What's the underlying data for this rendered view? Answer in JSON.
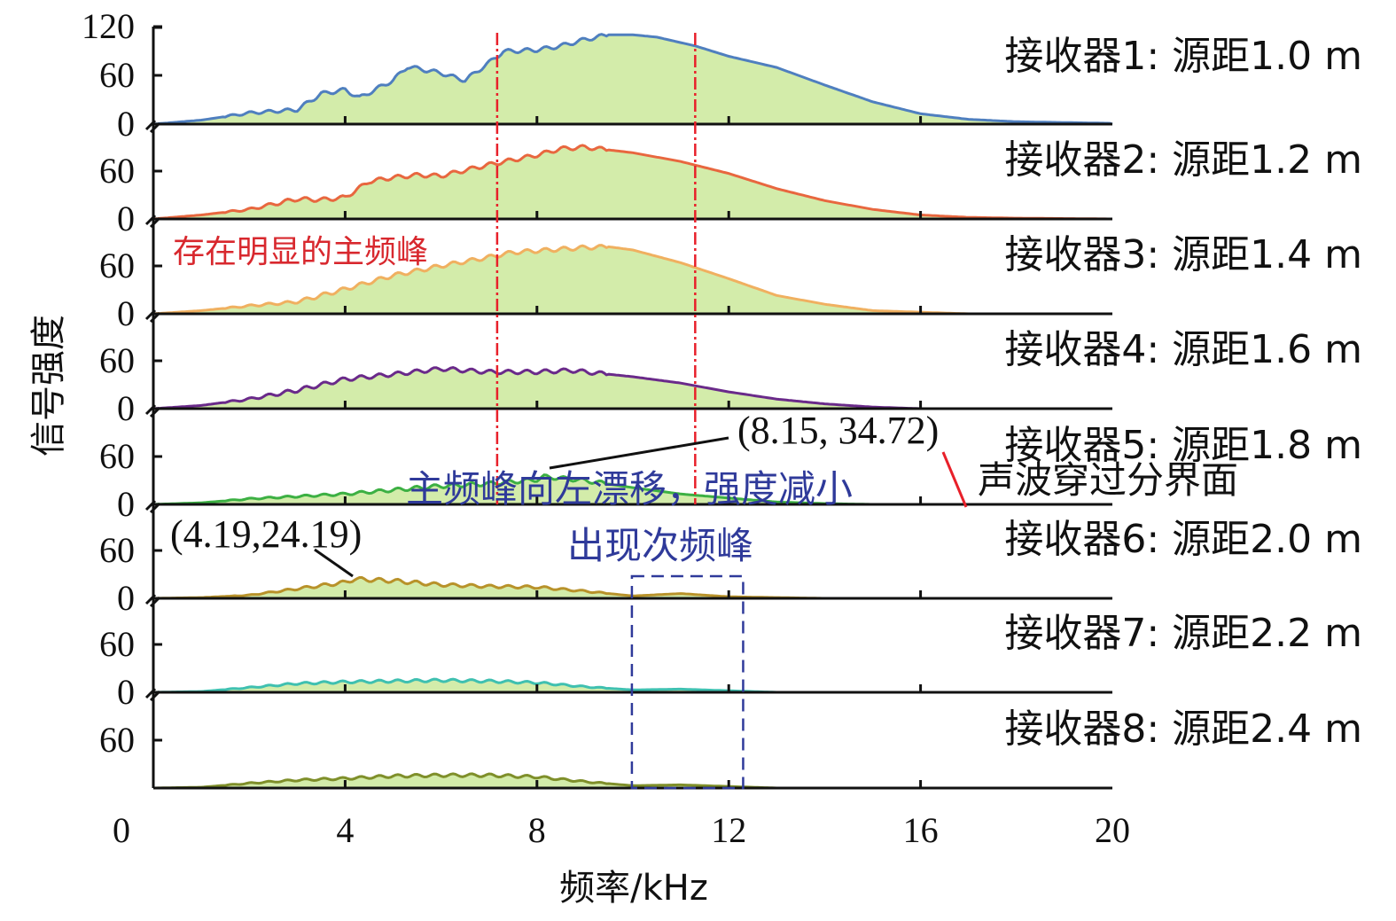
{
  "chart_data": {
    "type": "area",
    "xlabel": "频率/kHz",
    "ylabel": "信号强度",
    "xlim": [
      0,
      20
    ],
    "xticks": [
      "0",
      "4",
      "8",
      "12",
      "16",
      "20"
    ],
    "ylim": [
      0,
      120
    ],
    "first_panel_yticks": [
      "120",
      "60",
      "0"
    ],
    "panel_yticks": [
      "60",
      "0"
    ],
    "fill_color": "#d3ecaa",
    "series": [
      {
        "name": "接收器1: 源距1.0 m",
        "color": "#4f7fbf",
        "x": [
          0,
          1,
          2,
          3,
          3.5,
          4,
          4.3,
          5,
          5.3,
          6,
          6.2,
          6.5,
          7,
          7.3,
          8,
          8.5,
          9,
          9.5,
          10,
          10.5,
          11.3,
          12,
          13,
          14,
          15,
          16,
          17,
          18,
          20
        ],
        "y": [
          0,
          5,
          14,
          18,
          38,
          43,
          33,
          55,
          72,
          64,
          60,
          55,
          77,
          91,
          93,
          98,
          106,
          112,
          112,
          109,
          98,
          85,
          71,
          49,
          28,
          13,
          6,
          3,
          1
        ]
      },
      {
        "name": "接收器2: 源距1.2 m",
        "color": "#e8673f",
        "x": [
          0,
          1,
          2,
          3,
          3.5,
          4,
          4.5,
          5,
          5.5,
          6,
          7,
          7.5,
          8,
          8.5,
          9,
          10,
          11,
          12,
          13,
          14,
          15,
          16,
          17,
          18,
          20
        ],
        "y": [
          0,
          5,
          12,
          25,
          24,
          27,
          47,
          52,
          55,
          54,
          68,
          74,
          80,
          88,
          90,
          83,
          72,
          57,
          38,
          23,
          12,
          5,
          2,
          1,
          0
        ]
      },
      {
        "name": "接收器3: 源距1.4 m",
        "color": "#f0b060",
        "x": [
          0,
          1,
          2,
          3,
          4,
          5,
          6,
          7,
          7.5,
          8,
          9,
          9.5,
          10,
          11,
          12,
          13,
          14,
          15,
          16,
          17,
          20
        ],
        "y": [
          0,
          4,
          10,
          15,
          31,
          48,
          60,
          71,
          77,
          79,
          83,
          84,
          80,
          64,
          44,
          23,
          12,
          4,
          2,
          0,
          0
        ]
      },
      {
        "name": "接收器4: 源距1.6 m",
        "color": "#6a2a8a",
        "x": [
          0,
          1,
          2,
          3,
          4,
          5,
          6,
          7,
          8,
          8.7,
          10,
          11,
          12,
          13,
          14,
          15,
          16,
          20
        ],
        "y": [
          0,
          4,
          12,
          23,
          37,
          43,
          50,
          46,
          46,
          48,
          40,
          32,
          21,
          12,
          6,
          2,
          0,
          0
        ]
      },
      {
        "name": "接收器5: 源距1.8 m",
        "color": "#3cb043",
        "x": [
          0,
          1,
          2,
          3,
          4,
          5,
          6,
          7,
          8,
          8.15,
          9,
          10,
          11,
          12,
          13,
          14,
          15,
          20
        ],
        "y": [
          0,
          2,
          7,
          10,
          13,
          18,
          23,
          26,
          31,
          34.72,
          30,
          21,
          13,
          8,
          3,
          1,
          0,
          0
        ]
      },
      {
        "name": "接收器6: 源距2.0 m",
        "color": "#b8922a",
        "x": [
          0,
          1,
          2,
          3,
          4,
          4.19,
          5,
          6,
          7,
          8,
          9,
          10,
          11,
          12,
          13,
          14,
          20
        ],
        "y": [
          0,
          1,
          4,
          12,
          20,
          24.19,
          22,
          17,
          15,
          14,
          9,
          3,
          6,
          2,
          1,
          0,
          0
        ]
      },
      {
        "name": "接收器7: 源距2.2 m",
        "color": "#3fc0b0",
        "x": [
          0,
          1,
          2,
          3,
          4,
          5,
          6,
          7,
          8,
          9,
          10,
          11,
          12,
          13,
          20
        ],
        "y": [
          0,
          1,
          6,
          11,
          13,
          14,
          15,
          14,
          12,
          7,
          3,
          4,
          2,
          0,
          0
        ]
      },
      {
        "name": "接收器8: 源距2.4 m",
        "color": "#7f8f2a",
        "x": [
          0,
          1,
          2,
          3,
          4,
          5,
          6,
          7,
          8,
          9,
          10,
          11,
          12,
          13,
          20
        ],
        "y": [
          0,
          1,
          6,
          10,
          12,
          15,
          16,
          16,
          14,
          8,
          3,
          4,
          2,
          0,
          0
        ]
      }
    ],
    "reference_lines_khz": [
      7.17,
      11.3
    ],
    "secondary_peak_box_khz": [
      9.98,
      12.3
    ],
    "annotations": {
      "main_peak": "存在明显的主频峰",
      "peak5_coord": "(8.15, 34.72)",
      "drift": "主频峰向左漂移，强度减小",
      "interface": "声波穿过分界面",
      "peak6_coord": "(4.19,24.19)",
      "secondary": "出现次频峰"
    },
    "colors": {
      "ref_line": "#e8202a",
      "annotation_blue": "#2f3a9a",
      "axis": "#111111"
    }
  }
}
